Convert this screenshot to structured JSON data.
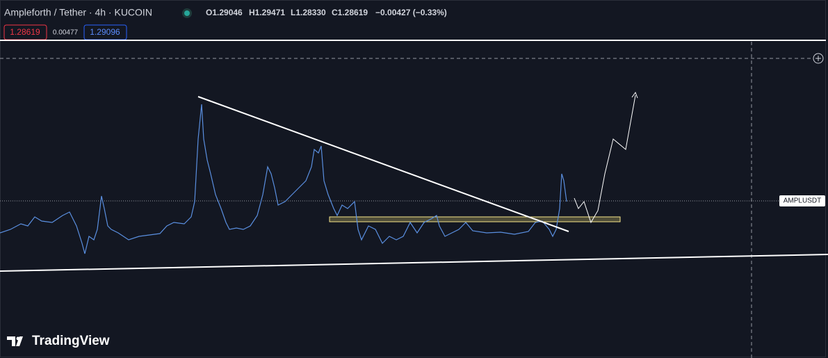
{
  "header": {
    "title": "Ampleforth / Tether · 4h · KUCOIN",
    "open": "O1.29046",
    "high": "H1.29471",
    "low": "L1.28330",
    "close": "C1.28619",
    "change": "−0.00427 (−0.33%)"
  },
  "price_boxes": {
    "sell": "1.28619",
    "spread": "0.00477",
    "buy": "1.29096"
  },
  "symbol_label": "AMPLUSDT",
  "logo": "TradingView"
}
